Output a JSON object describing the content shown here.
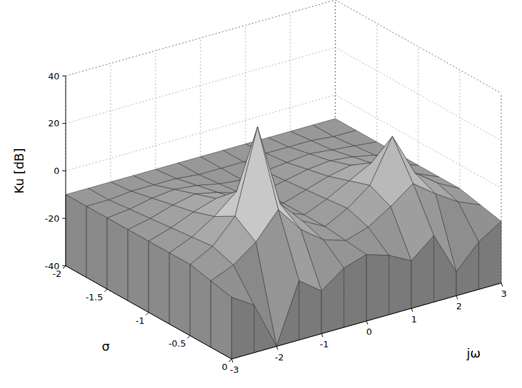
{
  "chart_data": {
    "type": "surface",
    "xlabel": "σ",
    "ylabel": "jω",
    "zlabel": "Ku [dB]",
    "x": [
      -2,
      -1.75,
      -1.5,
      -1.25,
      -1,
      -0.75,
      -0.5,
      -0.25,
      0
    ],
    "y": [
      -3,
      -2.5,
      -2,
      -1.5,
      -1,
      -0.5,
      0,
      0.5,
      1,
      1.5,
      2,
      2.5,
      3
    ],
    "z": [
      [
        -10,
        -10,
        -10,
        -10,
        -10,
        -10,
        -10,
        -10,
        -10,
        -10,
        -10,
        -10,
        -10
      ],
      [
        -10,
        -10,
        -9,
        -9,
        -9,
        -10,
        -10,
        -10,
        -9,
        -9,
        -9,
        -10,
        -10
      ],
      [
        -10,
        -9,
        -7,
        -6,
        -7,
        -9,
        -10,
        -9,
        -8,
        -7,
        -8,
        -9,
        -10
      ],
      [
        -10,
        -8,
        -5,
        -3,
        -5,
        -8,
        -10,
        -8,
        -6,
        -5,
        -6,
        -8,
        -10
      ],
      [
        -10,
        -7,
        -3,
        0,
        -3,
        -7,
        -10,
        -7,
        -4,
        -2,
        -4,
        -7,
        -10
      ],
      [
        -10,
        -6,
        0,
        8,
        0,
        -6,
        -10,
        -6,
        -1,
        4,
        -1,
        -6,
        -10
      ],
      [
        -10,
        -5,
        5,
        40,
        5,
        -5,
        -10,
        -5,
        2,
        20,
        2,
        -5,
        -10
      ],
      [
        -12,
        -8,
        -1,
        10,
        -1,
        -8,
        -11,
        -8,
        -2,
        5,
        -2,
        -8,
        -12
      ],
      [
        -14,
        -20,
        -40,
        -15,
        -22,
        -15,
        -12,
        -15,
        -20,
        -12,
        -30,
        -20,
        -14
      ]
    ],
    "xlim": [
      -2,
      0
    ],
    "ylim": [
      -3,
      3
    ],
    "zlim": [
      -40,
      40
    ],
    "xticks": [
      -2,
      -1.5,
      -1,
      -0.5,
      0
    ],
    "yticks": [
      -3,
      -2,
      -1,
      0,
      1,
      2,
      3
    ],
    "zticks": [
      -40,
      -20,
      0,
      20,
      40
    ],
    "grid": true
  }
}
